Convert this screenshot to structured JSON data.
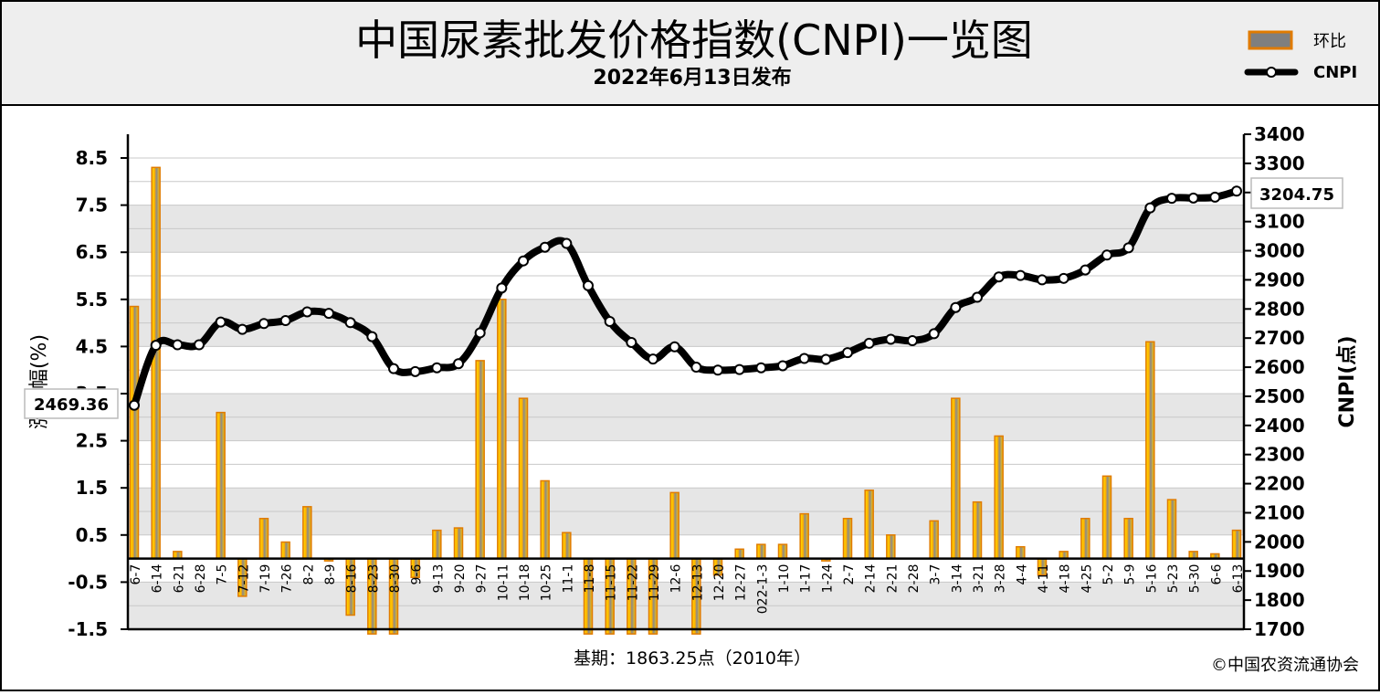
{
  "header": {
    "title": "中国尿素批发价格指数(CNPI)一览图",
    "subtitle": "2022年6月13日发布"
  },
  "legend": {
    "bar_label": "环比",
    "line_label": "CNPI"
  },
  "footer": {
    "base_note": "基期：1863.25点（2010年）",
    "copyright": "©中国农资流通协会"
  },
  "callouts": {
    "first": "2469.36",
    "last": "3204.75"
  },
  "colors": {
    "bar_fill": "#7f7f7f",
    "bar_stroke": "#e07b00",
    "bar_highlight": "#ffd000",
    "line": "#000000",
    "grid_band": "#e6e6e6",
    "header_bg": "#eeeeee"
  },
  "chart_data": {
    "type": "bar+line",
    "title": "中国尿素批发价格指数(CNPI)一览图",
    "subtitle": "2022年6月13日发布",
    "ylabel_left": "涨跌幅(%)",
    "ylabel_right": "CNPI(点)",
    "ylim_left": [
      -1.5,
      9
    ],
    "yticks_left": [
      "8.5",
      "7.5",
      "6.5",
      "5.5",
      "4.5",
      "3.5",
      "2.5",
      "1.5",
      "0.5",
      "-0.5",
      "-1.5"
    ],
    "ylim_right": [
      1700,
      3400
    ],
    "yticks_right": [
      "3400",
      "3300",
      "3200",
      "3100",
      "3000",
      "2900",
      "2800",
      "2700",
      "2600",
      "2500",
      "2400",
      "2300",
      "2200",
      "2100",
      "2000",
      "1900",
      "1800",
      "1700"
    ],
    "grid": true,
    "categories": [
      "6-7",
      "6-14",
      "6-21",
      "6-28",
      "7-5",
      "7-12",
      "7-19",
      "7-26",
      "8-2",
      "8-9",
      "8-16",
      "8-23",
      "8-30",
      "9-6",
      "9-13",
      "9-20",
      "9-27",
      "10-11",
      "10-18",
      "10-25",
      "11-1",
      "11-8",
      "11-15",
      "11-22",
      "11-29",
      "12-6",
      "12-13",
      "12-20",
      "12-27",
      "022-1-3",
      "1-10",
      "1-17",
      "1-24",
      "2-7",
      "2-14",
      "2-21",
      "2-28",
      "3-7",
      "3-14",
      "3-21",
      "3-28",
      "4-4",
      "4-11",
      "4-18",
      "4-25",
      "5-2",
      "5-9",
      "5-16",
      "5-23",
      "5-30",
      "6-6",
      "6-13"
    ],
    "series": [
      {
        "name": "环比",
        "type": "bar",
        "axis": "left",
        "values": [
          5.35,
          8.3,
          0.15,
          0.0,
          3.1,
          -0.8,
          0.85,
          0.35,
          1.1,
          -0.05,
          -1.2,
          -1.6,
          -1.6,
          -0.4,
          0.6,
          0.65,
          4.2,
          5.5,
          3.4,
          1.65,
          0.55,
          -1.6,
          -1.6,
          -1.6,
          -1.6,
          1.4,
          -1.6,
          -0.35,
          0.2,
          0.3,
          0.3,
          0.95,
          -0.05,
          0.85,
          1.45,
          0.5,
          0.0,
          0.8,
          3.4,
          1.2,
          2.6,
          0.25,
          -0.35,
          0.15,
          0.85,
          1.75,
          0.85,
          4.6,
          1.25,
          0.15,
          0.1,
          0.6
        ]
      },
      {
        "name": "CNPI",
        "type": "line",
        "axis": "right",
        "values": [
          2469.36,
          2675,
          2677,
          2677,
          2755,
          2730,
          2750,
          2760,
          2790,
          2785,
          2753,
          2705,
          2595,
          2585,
          2598,
          2612,
          2718,
          2872,
          2965,
          3012,
          3025,
          2880,
          2757,
          2685,
          2628,
          2670,
          2600,
          2590,
          2592,
          2598,
          2605,
          2630,
          2627,
          2650,
          2682,
          2696,
          2691,
          2715,
          2805,
          2840,
          2910,
          2915,
          2900,
          2905,
          2934,
          2985,
          3010,
          3147,
          3180,
          3181,
          3184,
          3204.75
        ]
      }
    ]
  }
}
